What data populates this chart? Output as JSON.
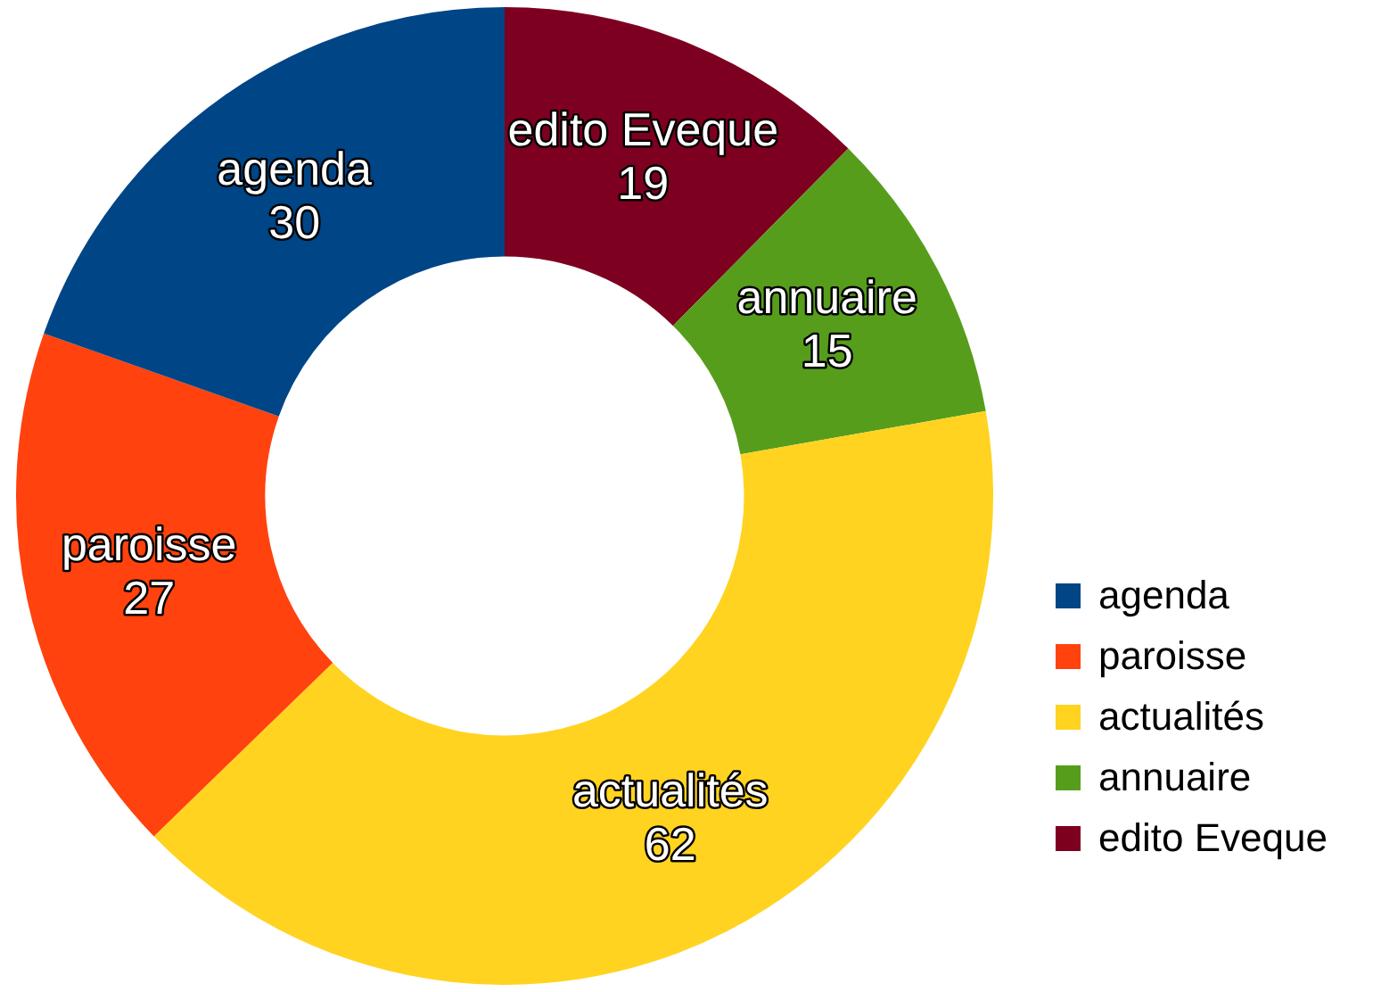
{
  "chart_data": {
    "type": "donut",
    "categories": [
      "agenda",
      "paroisse",
      "actualités",
      "annuaire",
      "edito Eveque"
    ],
    "values": [
      30,
      27,
      62,
      15,
      19
    ],
    "colors": [
      "#004586",
      "#ff420e",
      "#ffd320",
      "#579d1c",
      "#7e0021"
    ],
    "data_labels": true,
    "legend": "right"
  }
}
